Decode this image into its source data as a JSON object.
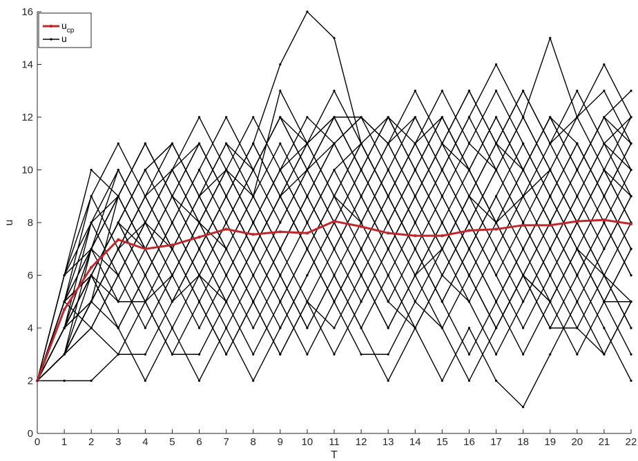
{
  "chart_data": {
    "type": "line",
    "xlabel": "T",
    "ylabel": "u",
    "xlim": [
      0,
      22
    ],
    "ylim": [
      0,
      16
    ],
    "xticks": [
      0,
      1,
      2,
      3,
      4,
      5,
      6,
      7,
      8,
      9,
      10,
      11,
      12,
      13,
      14,
      15,
      16,
      17,
      18,
      19,
      20,
      21,
      22
    ],
    "yticks": [
      0,
      2,
      4,
      6,
      8,
      10,
      12,
      14,
      16
    ],
    "grid": false,
    "legend": {
      "placement": "top-left",
      "entries": [
        {
          "main": "u",
          "sub": "cp",
          "color": "#c0272d"
        },
        {
          "main": "u",
          "sub": "",
          "color": "#000000"
        }
      ]
    },
    "mean_series": {
      "color": "#c0272d",
      "x": [
        0,
        1,
        2,
        3,
        4,
        5,
        6,
        7,
        8,
        9,
        10,
        11,
        12,
        13,
        14,
        15,
        16,
        17,
        18,
        19,
        20,
        21,
        22
      ],
      "values": [
        2,
        4.7,
        6.3,
        7.35,
        7.0,
        7.15,
        7.45,
        7.75,
        7.55,
        7.65,
        7.6,
        8.05,
        7.85,
        7.6,
        7.5,
        7.5,
        7.7,
        7.75,
        7.9,
        7.9,
        8.05,
        8.1,
        7.95
      ]
    },
    "series": [
      {
        "values": [
          2,
          3,
          5,
          7,
          9,
          11,
          9,
          10,
          12,
          10,
          11,
          12,
          10,
          8,
          6,
          7,
          9,
          8,
          9,
          11,
          12,
          13,
          11
        ]
      },
      {
        "values": [
          2,
          4,
          6,
          8,
          10,
          8,
          6,
          4,
          6,
          8,
          10,
          11,
          12,
          10,
          8,
          6,
          5,
          7,
          9,
          10,
          8,
          6,
          4
        ]
      },
      {
        "values": [
          2,
          3,
          4,
          3,
          5,
          7,
          9,
          11,
          9,
          7,
          9,
          11,
          12,
          11,
          9,
          11,
          13,
          11,
          10,
          12,
          11,
          9,
          7
        ]
      },
      {
        "values": [
          2,
          2,
          2,
          3,
          3,
          5,
          6,
          5,
          7,
          9,
          11,
          12,
          12,
          11,
          13,
          11,
          9,
          11,
          13,
          11,
          9,
          11,
          10
        ]
      },
      {
        "values": [
          2,
          3,
          5,
          4,
          2,
          4,
          6,
          8,
          6,
          4,
          6,
          8,
          10,
          8,
          6,
          8,
          6,
          4,
          6,
          4,
          6,
          8,
          6
        ]
      },
      {
        "values": [
          2,
          4,
          6,
          5,
          7,
          9,
          8,
          7,
          9,
          13,
          11,
          13,
          11,
          9,
          7,
          5,
          7,
          9,
          7,
          5,
          7,
          5,
          5
        ]
      },
      {
        "values": [
          2,
          5,
          7,
          9,
          11,
          9,
          7,
          9,
          11,
          9,
          7,
          5,
          3,
          3,
          5,
          4,
          6,
          4,
          6,
          5,
          3,
          5,
          7
        ]
      },
      {
        "values": [
          2,
          4,
          7,
          5,
          5,
          6,
          8,
          10,
          9,
          11,
          9,
          7,
          5,
          7,
          9,
          11,
          10,
          12,
          10,
          8,
          10,
          12,
          10
        ]
      },
      {
        "values": [
          2,
          3,
          6,
          8,
          6,
          8,
          10,
          8,
          10,
          12,
          11,
          9,
          7,
          9,
          7,
          5,
          7,
          9,
          11,
          9,
          7,
          5,
          3
        ]
      },
      {
        "values": [
          2,
          5,
          9,
          11,
          9,
          7,
          5,
          3,
          5,
          7,
          9,
          11,
          9,
          7,
          9,
          11,
          13,
          11,
          9,
          7,
          9,
          11,
          12
        ]
      },
      {
        "values": [
          2,
          4,
          5,
          7,
          9,
          10,
          12,
          10,
          8,
          6,
          4,
          6,
          4,
          2,
          4,
          6,
          8,
          10,
          8,
          6,
          8,
          10,
          9
        ]
      },
      {
        "values": [
          2,
          6,
          8,
          9,
          7,
          5,
          7,
          9,
          7,
          9,
          7,
          9,
          11,
          12,
          11,
          9,
          7,
          5,
          7,
          9,
          11,
          9,
          7
        ]
      },
      {
        "values": [
          2,
          3,
          5,
          7,
          8,
          10,
          11,
          9,
          7,
          5,
          3,
          5,
          7,
          9,
          11,
          12,
          10,
          12,
          10,
          12,
          10,
          12,
          13
        ]
      },
      {
        "values": [
          2,
          5,
          4,
          6,
          8,
          6,
          4,
          6,
          8,
          10,
          12,
          11,
          9,
          11,
          9,
          7,
          9,
          7,
          5,
          7,
          9,
          7,
          9
        ]
      },
      {
        "values": [
          2,
          4,
          6,
          8,
          6,
          4,
          2,
          4,
          2,
          4,
          6,
          8,
          6,
          4,
          6,
          8,
          6,
          8,
          6,
          8,
          6,
          4,
          2
        ]
      },
      {
        "values": [
          2,
          5,
          7,
          6,
          8,
          7,
          9,
          7,
          5,
          3,
          5,
          3,
          5,
          7,
          5,
          7,
          9,
          11,
          13,
          11,
          13,
          11,
          9
        ]
      },
      {
        "values": [
          2,
          6,
          10,
          9,
          11,
          9,
          11,
          9,
          11,
          14,
          16,
          15,
          11,
          9,
          7,
          9,
          7,
          5,
          3,
          5,
          7,
          6,
          4
        ]
      },
      {
        "values": [
          2,
          4,
          6,
          4,
          6,
          8,
          6,
          8,
          10,
          12,
          10,
          8,
          6,
          4,
          6,
          4,
          2,
          4,
          6,
          8,
          10,
          12,
          11
        ]
      },
      {
        "values": [
          2,
          3,
          7,
          9,
          7,
          9,
          7,
          9,
          7,
          5,
          7,
          5,
          7,
          5,
          4,
          6,
          8,
          10,
          12,
          15,
          12,
          14,
          12
        ]
      },
      {
        "values": [
          2,
          5,
          6,
          8,
          10,
          11,
          9,
          7,
          9,
          7,
          9,
          7,
          9,
          7,
          9,
          7,
          5,
          3,
          5,
          7,
          5,
          3,
          5
        ]
      },
      {
        "values": [
          2,
          4,
          7,
          10,
          8,
          6,
          8,
          10,
          8,
          6,
          4,
          6,
          8,
          10,
          8,
          10,
          8,
          6,
          4,
          6,
          8,
          10,
          8
        ]
      },
      {
        "values": [
          2,
          5,
          8,
          6,
          4,
          6,
          8,
          6,
          4,
          6,
          8,
          10,
          11,
          9,
          11,
          13,
          11,
          13,
          11,
          9,
          11,
          9,
          11
        ]
      },
      {
        "values": [
          2,
          3,
          4,
          6,
          8,
          10,
          8,
          6,
          8,
          10,
          8,
          6,
          4,
          6,
          8,
          10,
          12,
          14,
          12,
          10,
          8,
          6,
          8
        ]
      },
      {
        "values": [
          2,
          6,
          9,
          7,
          9,
          7,
          5,
          3,
          5,
          7,
          5,
          7,
          9,
          11,
          12,
          10,
          8,
          6,
          8,
          10,
          12,
          10,
          12
        ]
      },
      {
        "values": [
          2,
          4,
          5,
          7,
          5,
          3,
          5,
          7,
          5,
          3,
          5,
          4,
          6,
          8,
          10,
          8,
          10,
          8,
          10,
          8,
          6,
          8,
          6
        ]
      },
      {
        "values": [
          2,
          5,
          6,
          4,
          6,
          8,
          10,
          12,
          10,
          8,
          10,
          12,
          10,
          8,
          10,
          12,
          10,
          8,
          10,
          12,
          10,
          8,
          10
        ]
      },
      {
        "values": [
          2,
          3,
          5,
          9,
          7,
          5,
          7,
          5,
          7,
          9,
          10,
          8,
          10,
          12,
          10,
          8,
          6,
          4,
          6,
          4,
          4,
          6,
          5
        ]
      },
      {
        "values": [
          2,
          4,
          8,
          10,
          8,
          10,
          8,
          10,
          8,
          10,
          8,
          10,
          8,
          6,
          4,
          2,
          4,
          2,
          1,
          3,
          5,
          7,
          9
        ]
      },
      {
        "values": [
          2,
          5,
          6,
          8,
          7,
          5,
          7,
          5,
          3,
          5,
          7,
          9,
          8,
          10,
          12,
          10,
          12,
          10,
          8,
          6,
          4,
          3,
          5
        ]
      },
      {
        "values": [
          2,
          3,
          5,
          7,
          5,
          3,
          3,
          5,
          7,
          9,
          11,
          9,
          11,
          9,
          11,
          9,
          11,
          10,
          12,
          10,
          8,
          10,
          8
        ]
      },
      {
        "values": [
          2,
          4,
          6,
          8,
          10,
          11,
          9,
          11,
          10,
          12,
          10,
          12,
          10,
          12,
          10,
          12,
          10,
          8,
          6,
          5,
          7,
          5,
          7
        ]
      },
      {
        "values": [
          2,
          6,
          7,
          9,
          11,
          9,
          11,
          9,
          11,
          9,
          7,
          5,
          7,
          5,
          7,
          5,
          3,
          5,
          7,
          9,
          7,
          9,
          11
        ]
      }
    ]
  }
}
